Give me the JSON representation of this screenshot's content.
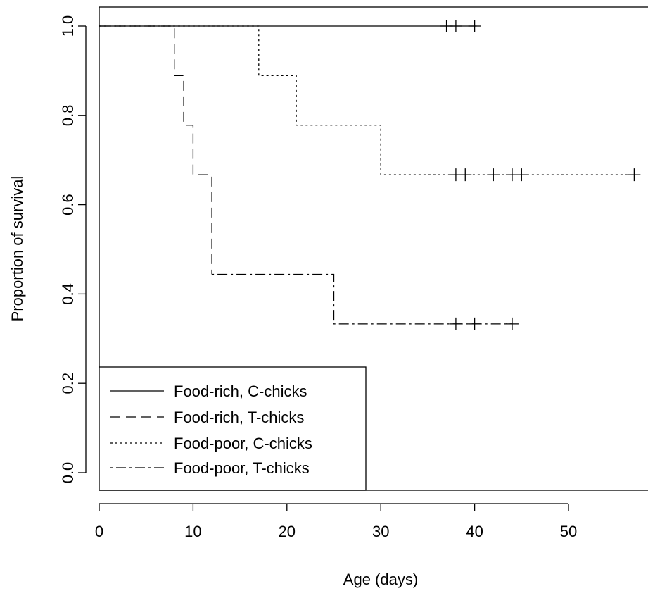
{
  "chart_data": {
    "type": "line",
    "step": true,
    "xlabel": "Age (days)",
    "ylabel": "Proportion of survival",
    "xlim": [
      0,
      58
    ],
    "ylim": [
      -0.04,
      1.04
    ],
    "x_ticks": [
      0,
      10,
      20,
      30,
      40,
      50
    ],
    "y_ticks": [
      0.0,
      0.2,
      0.4,
      0.6,
      0.8,
      1.0
    ],
    "x_tick_labels": [
      "0",
      "10",
      "20",
      "30",
      "40",
      "50"
    ],
    "y_tick_labels": [
      "0.0",
      "0.2",
      "0.4",
      "0.6",
      "0.8",
      "1.0"
    ],
    "grid": false,
    "legend_position": "bottom-left",
    "colors": {
      "line": "#000000",
      "axis": "#000000",
      "background": "#ffffff"
    },
    "series": [
      {
        "name": "Food-rich, C-chicks",
        "linestyle": "solid",
        "steps": [
          [
            0,
            1.0
          ],
          [
            40.2,
            1.0
          ]
        ],
        "censored": [
          37,
          38,
          40
        ]
      },
      {
        "name": "Food-rich, T-chicks",
        "linestyle": "dashed",
        "steps": [
          [
            0,
            1.0
          ],
          [
            8,
            1.0
          ],
          [
            8,
            0.889
          ],
          [
            9,
            0.889
          ],
          [
            9,
            0.778
          ],
          [
            10,
            0.778
          ],
          [
            10,
            0.667
          ],
          [
            12,
            0.667
          ],
          [
            12,
            0.444
          ],
          [
            12,
            0.444
          ]
        ],
        "censored": []
      },
      {
        "name": "Food-poor, C-chicks",
        "linestyle": "dotted",
        "steps": [
          [
            0,
            1.0
          ],
          [
            17,
            1.0
          ],
          [
            17,
            0.889
          ],
          [
            21,
            0.889
          ],
          [
            21,
            0.778
          ],
          [
            30,
            0.778
          ],
          [
            30,
            0.667
          ],
          [
            57,
            0.667
          ]
        ],
        "censored": [
          38,
          39,
          42,
          44,
          45,
          57
        ]
      },
      {
        "name": "Food-poor, T-chicks",
        "linestyle": "dashdot",
        "steps": [
          [
            12,
            0.444
          ],
          [
            25,
            0.444
          ],
          [
            25,
            0.333
          ],
          [
            44,
            0.333
          ]
        ],
        "censored": [
          38,
          40,
          44
        ]
      }
    ]
  }
}
